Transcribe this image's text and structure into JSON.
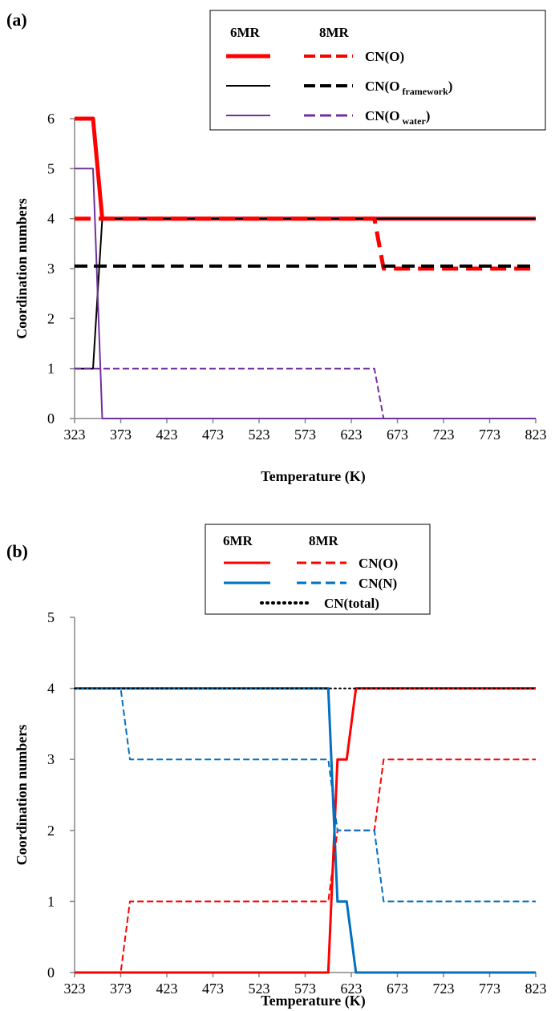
{
  "chart_data": [
    {
      "type": "line",
      "panel_label": "(a)",
      "xlabel": "Temperature (K)",
      "ylabel": "Coordination numbers",
      "xlim": [
        323,
        823
      ],
      "ylim": [
        0,
        6
      ],
      "xticks": [
        323,
        373,
        423,
        473,
        523,
        573,
        623,
        673,
        723,
        773,
        823
      ],
      "yticks": [
        0,
        1,
        2,
        3,
        4,
        5,
        6
      ],
      "grid": false,
      "legend": {
        "placement": "top-right",
        "header_6mr": "6MR",
        "header_8mr": "8MR",
        "rows": [
          {
            "label": "CN(O)",
            "base": "CN(O",
            "sub": "",
            "close": ")",
            "color": "#ff0000"
          },
          {
            "label": "CN(O framework)",
            "base": "CN(O",
            "sub": "framework",
            "close": ")",
            "color": "#000000"
          },
          {
            "label": "CN(O water)",
            "base": "CN(O",
            "sub": "water",
            "close": ")",
            "color": "#7030a0"
          }
        ]
      },
      "series": [
        {
          "group": "6MR",
          "label": "CN(O)",
          "color": "#ff0000",
          "dash": "solid",
          "width": 5,
          "x": [
            323,
            343,
            353,
            823
          ],
          "y": [
            6,
            6,
            4,
            4
          ]
        },
        {
          "group": "6MR",
          "label": "CN(O framework)",
          "color": "#000000",
          "dash": "solid",
          "width": 2,
          "x": [
            323,
            338,
            343,
            353,
            823
          ],
          "y": [
            1,
            1,
            1,
            4,
            4
          ]
        },
        {
          "group": "6MR",
          "label": "CN(O water)",
          "color": "#7030a0",
          "dash": "solid",
          "width": 2,
          "x": [
            323,
            343,
            353,
            823
          ],
          "y": [
            5,
            5,
            0,
            0
          ]
        },
        {
          "group": "8MR",
          "label": "CN(O)",
          "color": "#ff0000",
          "dash": "dashed",
          "width": 5,
          "x": [
            323,
            648,
            658,
            823
          ],
          "y": [
            4,
            4,
            3,
            3
          ]
        },
        {
          "group": "8MR",
          "label": "CN(O framework)",
          "color": "#000000",
          "dash": "dashed",
          "width": 4,
          "x": [
            323,
            823
          ],
          "y": [
            3.05,
            3.05
          ]
        },
        {
          "group": "8MR",
          "label": "CN(O water)",
          "color": "#7030a0",
          "dash": "dashed",
          "width": 2,
          "x": [
            323,
            648,
            658,
            823
          ],
          "y": [
            1,
            1,
            0,
            0
          ]
        }
      ]
    },
    {
      "type": "line",
      "panel_label": "(b)",
      "xlabel": "Temperature (K)",
      "ylabel": "Coordination numbers",
      "xlim": [
        323,
        823
      ],
      "ylim": [
        0,
        5
      ],
      "xticks": [
        323,
        373,
        423,
        473,
        523,
        573,
        623,
        673,
        723,
        773,
        823
      ],
      "yticks": [
        0,
        1,
        2,
        3,
        4,
        5
      ],
      "grid": false,
      "legend": {
        "placement": "top-right",
        "header_6mr": "6MR",
        "header_8mr": "8MR",
        "rows": [
          {
            "label": "CN(O)",
            "color": "#ff0000"
          },
          {
            "label": "CN(N)",
            "color": "#0070c0"
          },
          {
            "label": "CN(total)",
            "color": "#000000"
          }
        ]
      },
      "series": [
        {
          "group": "6MR",
          "label": "CN(O)",
          "color": "#ff0000",
          "dash": "solid",
          "width": 3,
          "x": [
            323,
            598,
            608,
            618,
            628,
            823
          ],
          "y": [
            0,
            0,
            3,
            3,
            4,
            4
          ]
        },
        {
          "group": "6MR",
          "label": "CN(N)",
          "color": "#0070c0",
          "dash": "solid",
          "width": 3,
          "x": [
            323,
            598,
            608,
            618,
            628,
            823
          ],
          "y": [
            4,
            4,
            1,
            1,
            0,
            0
          ]
        },
        {
          "group": "8MR",
          "label": "CN(O)",
          "color": "#ff0000",
          "dash": "dashed",
          "width": 2,
          "x": [
            323,
            373,
            383,
            598,
            608,
            648,
            658,
            823
          ],
          "y": [
            0,
            0,
            1,
            1,
            2,
            2,
            3,
            3
          ]
        },
        {
          "group": "8MR",
          "label": "CN(N)",
          "color": "#0070c0",
          "dash": "dashed",
          "width": 2,
          "x": [
            323,
            373,
            383,
            598,
            608,
            648,
            658,
            823
          ],
          "y": [
            4,
            4,
            3,
            3,
            2,
            2,
            1,
            1
          ]
        },
        {
          "group": "total",
          "label": "CN(total)",
          "color": "#000000",
          "dash": "dotted",
          "width": 2,
          "x": [
            323,
            823
          ],
          "y": [
            4,
            4
          ]
        }
      ]
    }
  ]
}
